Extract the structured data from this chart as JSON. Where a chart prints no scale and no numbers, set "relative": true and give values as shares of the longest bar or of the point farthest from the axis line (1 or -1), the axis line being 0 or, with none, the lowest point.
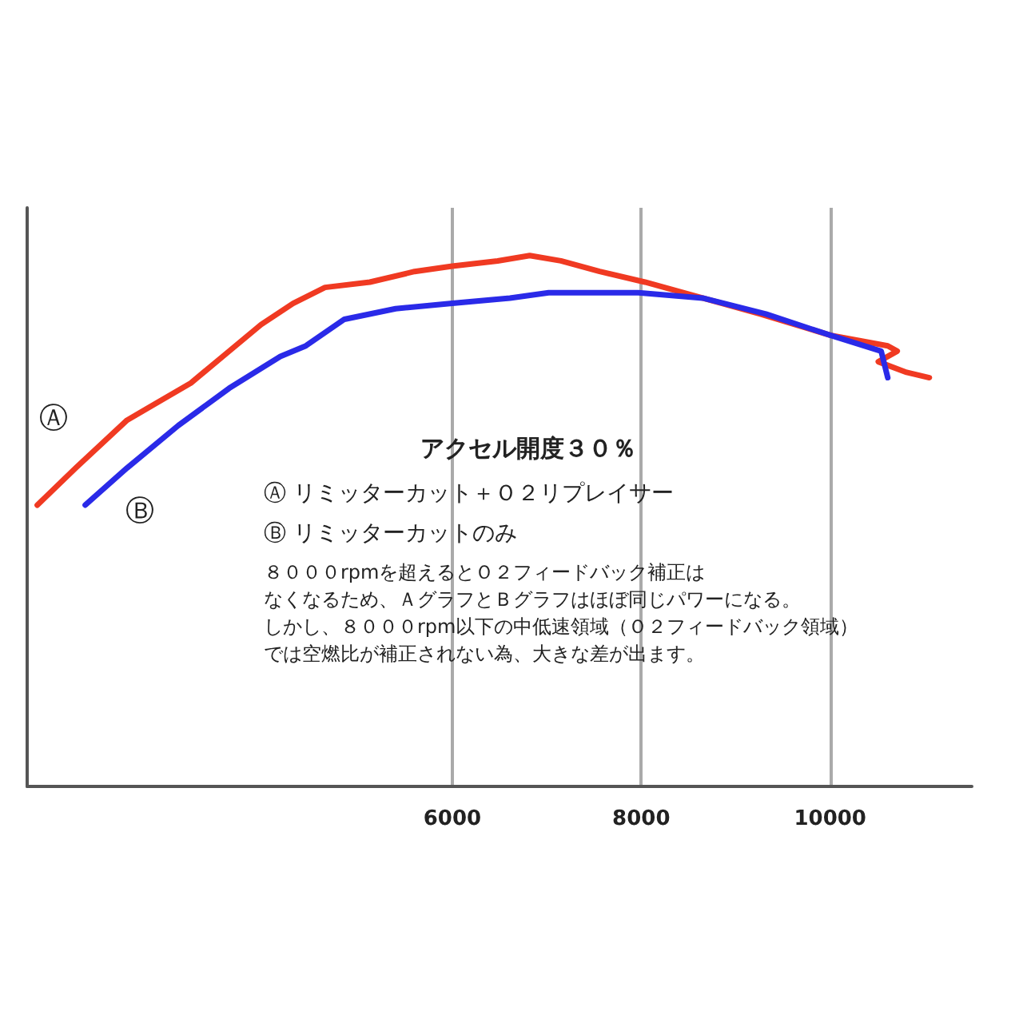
{
  "chart_data": {
    "type": "line",
    "title": "アクセル開度３０％",
    "relative": true,
    "xlim": [
      1500,
      11500
    ],
    "xticks": [
      6000,
      8000,
      10000
    ],
    "tick_labels": "x",
    "grid": "x",
    "legend": false,
    "marker": "none",
    "line_style": "solid",
    "series": [
      {
        "name": "Ⓐ",
        "color": "#f03a22",
        "x": [
          1607,
          2014,
          2558,
          3233,
          3638,
          3976,
          4315,
          4653,
          5127,
          5601,
          6000,
          6480,
          6820,
          7150,
          7560,
          8040,
          8650,
          9260,
          10000,
          10610,
          10710,
          10510,
          10810,
          11050
        ],
        "values": [
          0.53,
          0.6,
          0.69,
          0.76,
          0.82,
          0.87,
          0.91,
          0.94,
          0.95,
          0.97,
          0.98,
          0.99,
          1.0,
          0.99,
          0.97,
          0.95,
          0.92,
          0.89,
          0.85,
          0.83,
          0.82,
          0.8,
          0.78,
          0.77
        ]
      },
      {
        "name": "Ⓑ",
        "color": "#2a2ae8",
        "x": [
          2115,
          2558,
          3100,
          3638,
          4180,
          4450,
          4858,
          5400,
          6000,
          6610,
          7020,
          7970,
          8650,
          9320,
          10000,
          10540,
          10610
        ],
        "values": [
          0.53,
          0.6,
          0.68,
          0.75,
          0.81,
          0.83,
          0.88,
          0.9,
          0.91,
          0.92,
          0.93,
          0.93,
          0.92,
          0.89,
          0.85,
          0.82,
          0.77
        ]
      }
    ],
    "annotations": [
      "Ⓐ リミッターカット＋Ｏ２リプレイサー",
      "Ⓑ リミッターカットのみ",
      "８０００rpmを超えるとＯ２フィードバック補正は",
      "なくなるため、ＡグラフとＢグラフはほぼ同じパワーになる。",
      "しかし、８０００rpm以下の中低速領域（Ｏ２フィードバック領域）",
      "では空燃比が補正されない為、大きな差が出ます。"
    ]
  }
}
